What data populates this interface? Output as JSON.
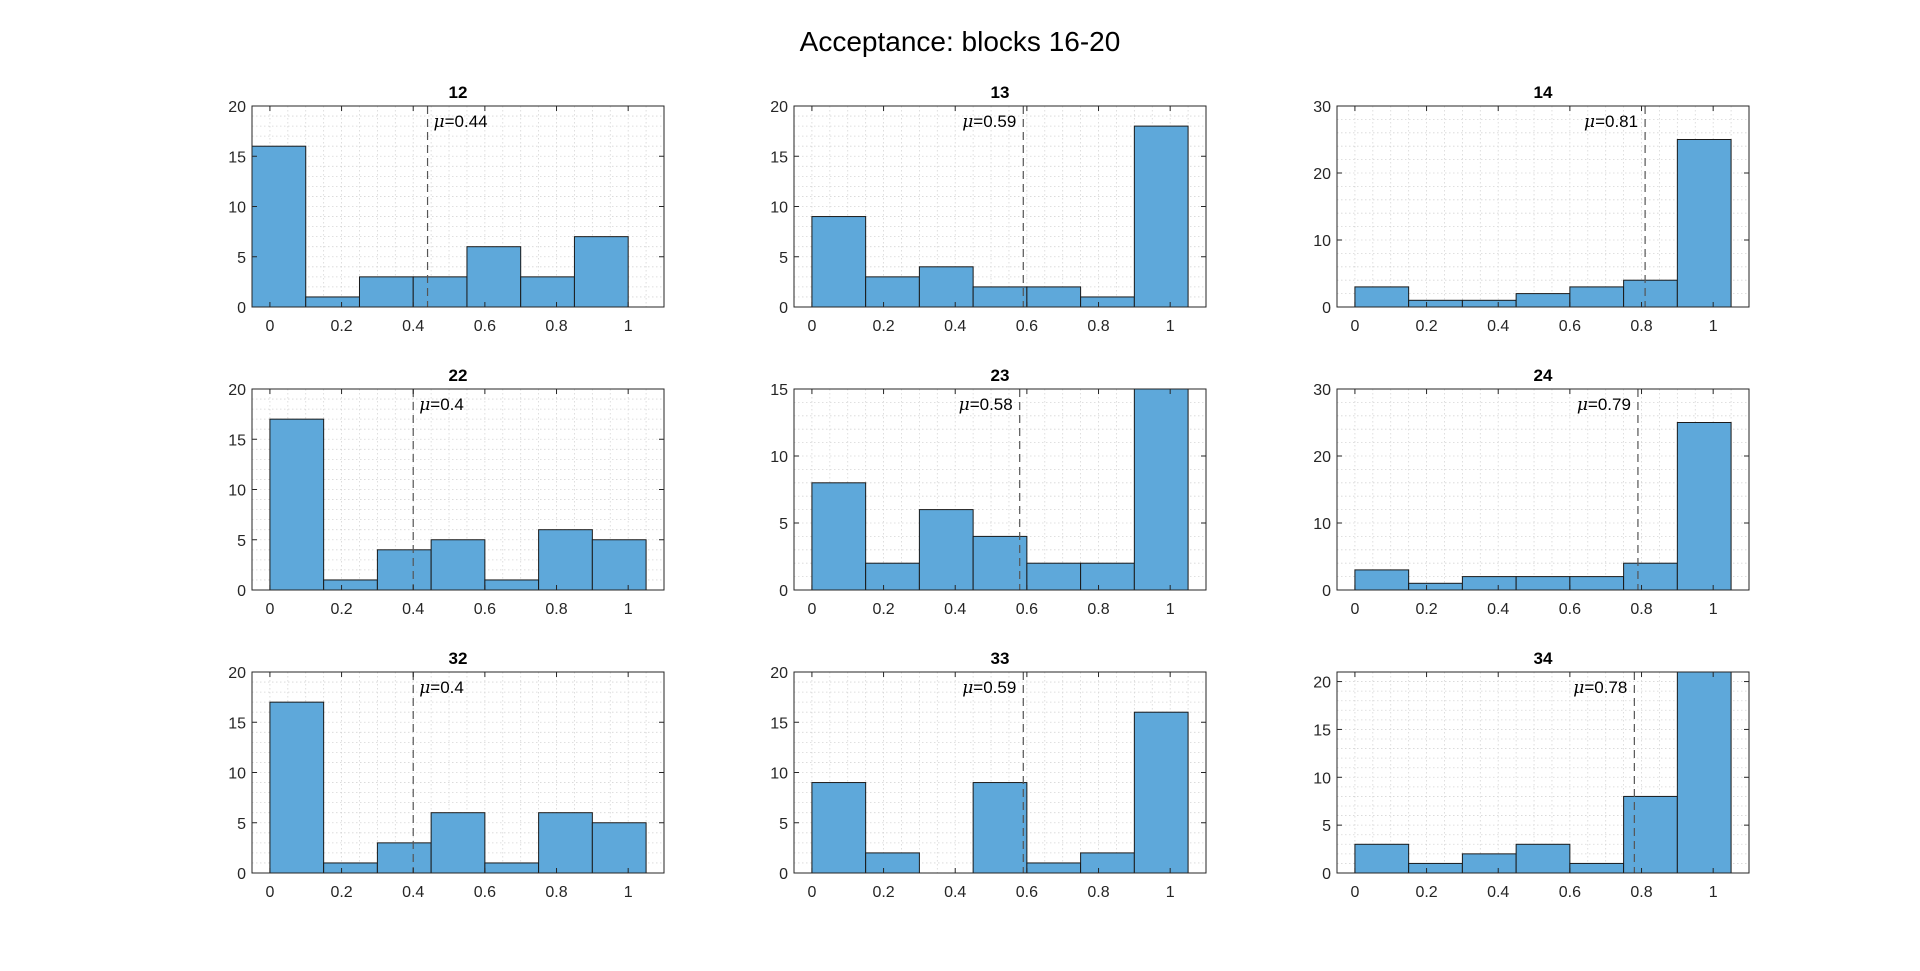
{
  "title": "Acceptance: blocks 16-20",
  "colors": {
    "bar": "#5ea8da",
    "edge": "#1a1a1a",
    "grid": "#d6d6d6",
    "mean_line": "#555555"
  },
  "chart_data": [
    {
      "type": "bar",
      "title": "12",
      "mean_label": "μ=0.44",
      "mean": 0.44,
      "bin_edges": [
        -0.05,
        0.1,
        0.25,
        0.4,
        0.55,
        0.7,
        0.85,
        1.0,
        1.15
      ],
      "x": [
        0.025,
        0.175,
        0.325,
        0.475,
        0.625,
        0.775,
        0.925,
        1.075
      ],
      "values": [
        16,
        1,
        3,
        3,
        6,
        3,
        7,
        0
      ],
      "xlim": [
        -0.05,
        1.1
      ],
      "xticks": [
        0,
        0.2,
        0.4,
        0.6,
        0.8,
        1
      ],
      "ylim": [
        0,
        20
      ],
      "yticks": [
        0,
        5,
        10,
        15,
        20
      ],
      "grid": true
    },
    {
      "type": "bar",
      "title": "13",
      "mean_label": "μ=0.59",
      "mean": 0.59,
      "x": [
        0.075,
        0.225,
        0.375,
        0.525,
        0.675,
        0.825,
        0.975
      ],
      "values": [
        9,
        3,
        4,
        2,
        2,
        1,
        18
      ],
      "xlim": [
        -0.05,
        1.1
      ],
      "xticks": [
        0,
        0.2,
        0.4,
        0.6,
        0.8,
        1
      ],
      "ylim": [
        0,
        20
      ],
      "yticks": [
        0,
        5,
        10,
        15,
        20
      ],
      "grid": true
    },
    {
      "type": "bar",
      "title": "14",
      "mean_label": "μ=0.81",
      "mean": 0.81,
      "x": [
        0.075,
        0.225,
        0.375,
        0.525,
        0.675,
        0.825,
        0.975
      ],
      "values": [
        3,
        1,
        1,
        2,
        3,
        4,
        25
      ],
      "xlim": [
        -0.05,
        1.1
      ],
      "xticks": [
        0,
        0.2,
        0.4,
        0.6,
        0.8,
        1
      ],
      "ylim": [
        0,
        30
      ],
      "yticks": [
        0,
        10,
        20,
        30
      ],
      "grid": true
    },
    {
      "type": "bar",
      "title": "22",
      "mean_label": "μ=0.4",
      "mean": 0.4,
      "x": [
        0.075,
        0.225,
        0.375,
        0.525,
        0.675,
        0.825,
        0.975
      ],
      "values": [
        17,
        1,
        4,
        5,
        1,
        6,
        5
      ],
      "xlim": [
        -0.05,
        1.1
      ],
      "xticks": [
        0,
        0.2,
        0.4,
        0.6,
        0.8,
        1
      ],
      "ylim": [
        0,
        20
      ],
      "yticks": [
        0,
        5,
        10,
        15,
        20
      ],
      "grid": true
    },
    {
      "type": "bar",
      "title": "23",
      "mean_label": "μ=0.58",
      "mean": 0.58,
      "x": [
        0.075,
        0.225,
        0.375,
        0.525,
        0.675,
        0.825,
        0.975
      ],
      "values": [
        8,
        2,
        6,
        4,
        2,
        2,
        15
      ],
      "xlim": [
        -0.05,
        1.1
      ],
      "xticks": [
        0,
        0.2,
        0.4,
        0.6,
        0.8,
        1
      ],
      "ylim": [
        0,
        15
      ],
      "yticks": [
        0,
        5,
        10,
        15
      ],
      "grid": true
    },
    {
      "type": "bar",
      "title": "24",
      "mean_label": "μ=0.79",
      "mean": 0.79,
      "x": [
        0.075,
        0.225,
        0.375,
        0.525,
        0.675,
        0.825,
        0.975
      ],
      "values": [
        3,
        1,
        2,
        2,
        2,
        4,
        25
      ],
      "xlim": [
        -0.05,
        1.1
      ],
      "xticks": [
        0,
        0.2,
        0.4,
        0.6,
        0.8,
        1
      ],
      "ylim": [
        0,
        30
      ],
      "yticks": [
        0,
        10,
        20,
        30
      ],
      "grid": true
    },
    {
      "type": "bar",
      "title": "32",
      "mean_label": "μ=0.4",
      "mean": 0.4,
      "x": [
        0.075,
        0.225,
        0.375,
        0.525,
        0.675,
        0.825,
        0.975
      ],
      "values": [
        17,
        1,
        3,
        6,
        1,
        6,
        5
      ],
      "xlim": [
        -0.05,
        1.1
      ],
      "xticks": [
        0,
        0.2,
        0.4,
        0.6,
        0.8,
        1
      ],
      "ylim": [
        0,
        20
      ],
      "yticks": [
        0,
        5,
        10,
        15,
        20
      ],
      "grid": true
    },
    {
      "type": "bar",
      "title": "33",
      "mean_label": "μ=0.59",
      "mean": 0.59,
      "x": [
        0.075,
        0.225,
        0.375,
        0.525,
        0.675,
        0.825,
        0.975
      ],
      "values": [
        9,
        2,
        0,
        9,
        1,
        2,
        16
      ],
      "xlim": [
        -0.05,
        1.1
      ],
      "xticks": [
        0,
        0.2,
        0.4,
        0.6,
        0.8,
        1
      ],
      "ylim": [
        0,
        20
      ],
      "yticks": [
        0,
        5,
        10,
        15,
        20
      ],
      "grid": true
    },
    {
      "type": "bar",
      "title": "34",
      "mean_label": "μ=0.78",
      "mean": 0.78,
      "x": [
        0.075,
        0.225,
        0.375,
        0.525,
        0.675,
        0.825,
        0.975
      ],
      "values": [
        3,
        1,
        2,
        3,
        1,
        8,
        21
      ],
      "xlim": [
        -0.05,
        1.1
      ],
      "xticks": [
        0,
        0.2,
        0.4,
        0.6,
        0.8,
        1
      ],
      "ylim": [
        0,
        21
      ],
      "yticks": [
        0,
        5,
        10,
        15,
        20
      ],
      "grid": true
    }
  ]
}
